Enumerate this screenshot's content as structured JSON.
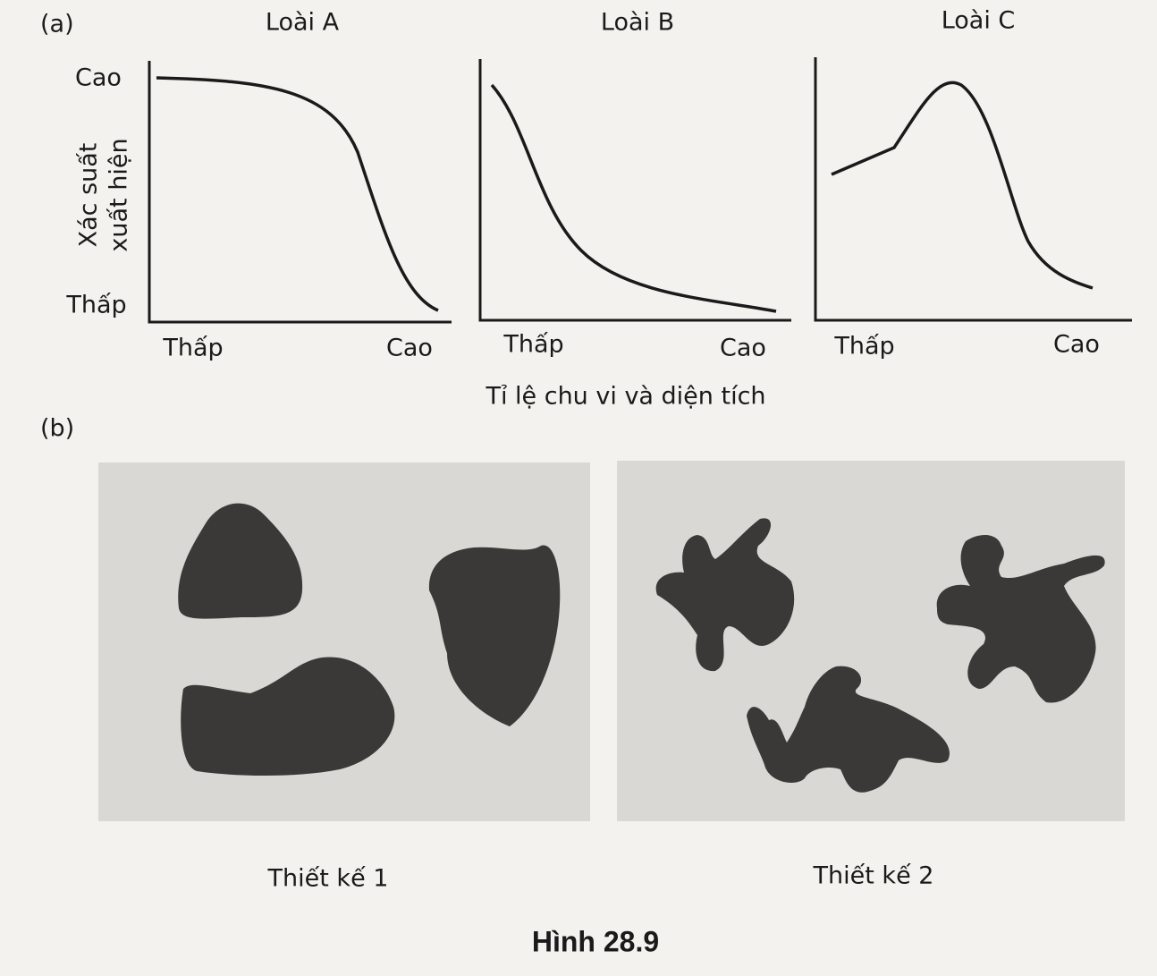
{
  "panel_a": {
    "label": "(a)",
    "y_axis": {
      "title_lines": [
        "Xác suất",
        "xuất hiện"
      ],
      "high": "Cao",
      "low": "Thấp"
    },
    "charts": [
      {
        "title": "Loài A",
        "x_low": "Thấp",
        "x_high": "Cao"
      },
      {
        "title": "Loài B",
        "x_low": "Thấp",
        "x_high": "Cao"
      },
      {
        "title": "Loài C",
        "x_low": "Thấp",
        "x_high": "Cao"
      }
    ],
    "x_axis_title": "Tỉ lệ chu vi và diện tích"
  },
  "panel_b": {
    "label": "(b)",
    "designs": [
      {
        "label": "Thiết kế 1"
      },
      {
        "label": "Thiết kế 2"
      }
    ]
  },
  "caption": "Hình 28.9"
}
